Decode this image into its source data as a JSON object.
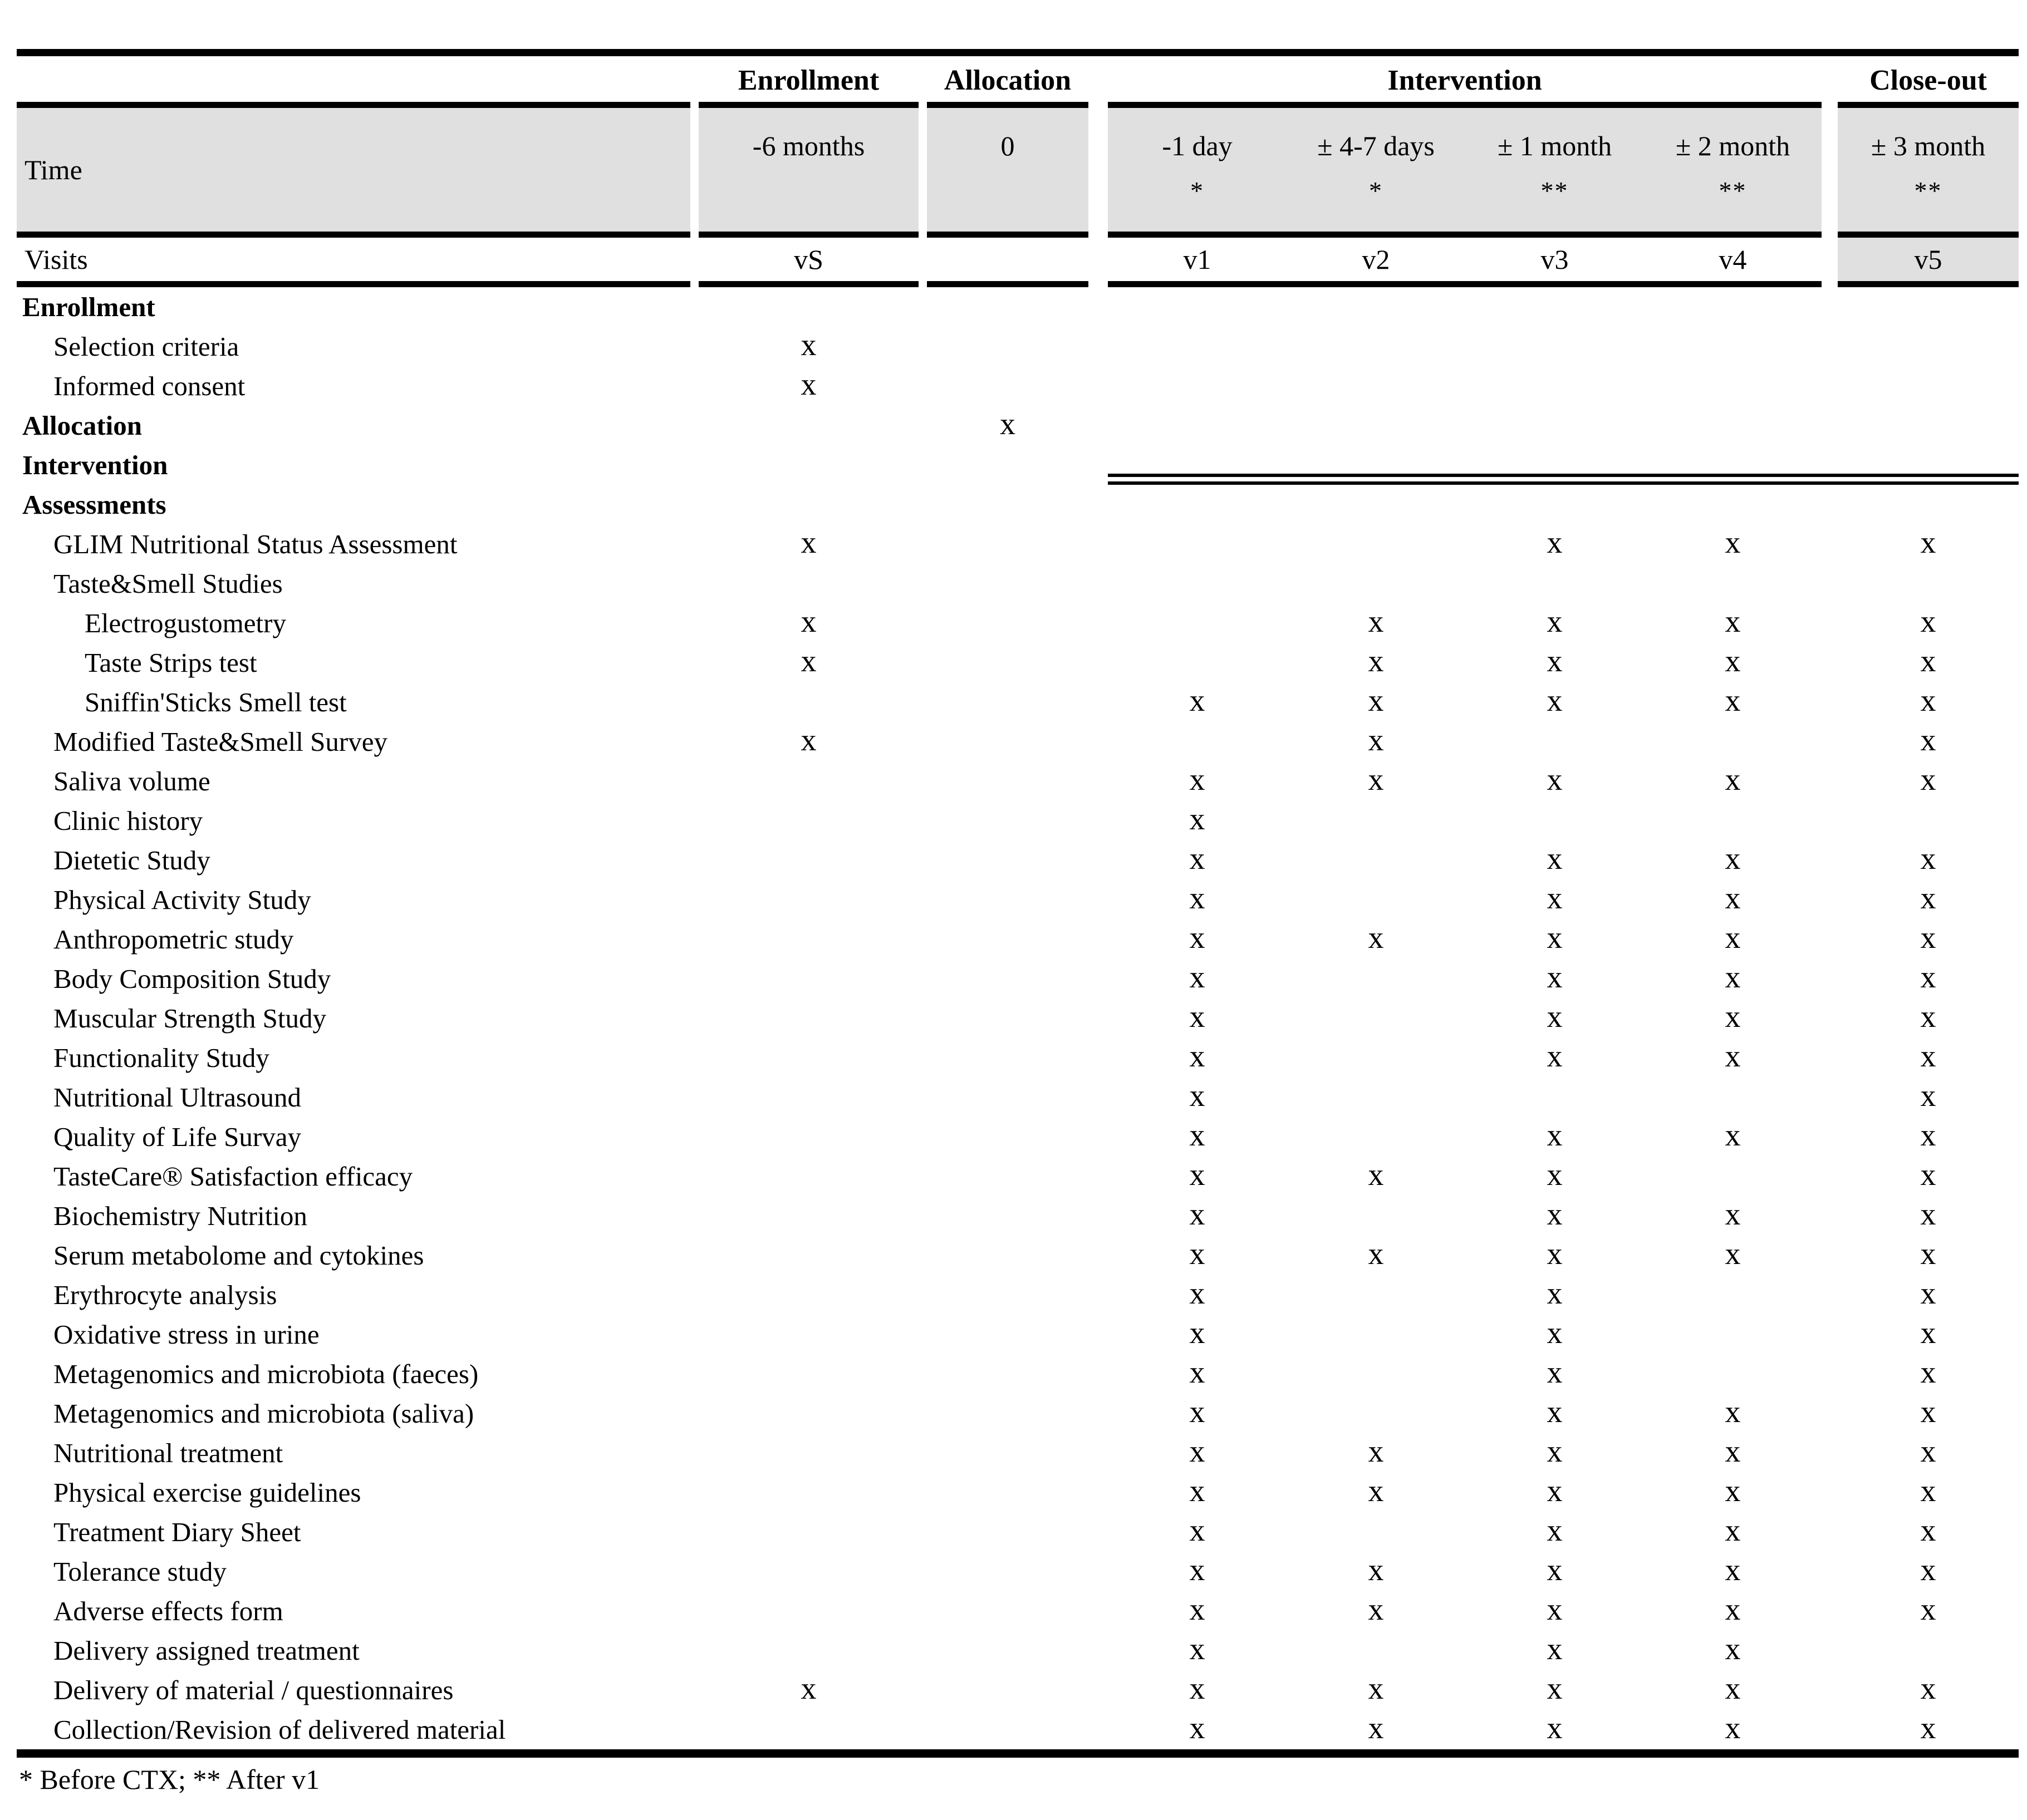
{
  "page": {
    "shaded_cell_color": "#e0e0e0",
    "footnote": "* Before CTX; ** After v1"
  },
  "header": {
    "time_label": "Time",
    "visits_label": "Visits",
    "groups": [
      {
        "label": "Enrollment",
        "time": "-6 months",
        "note": "",
        "visit": "vS"
      },
      {
        "label": "Allocation",
        "time": "0",
        "note": "",
        "visit": ""
      },
      {
        "label": "Intervention",
        "columns": [
          {
            "time": "-1 day",
            "note": "*",
            "visit": "v1"
          },
          {
            "time": "± 4-7 days",
            "note": "*",
            "visit": "v2"
          },
          {
            "time": "± 1 month",
            "note": "**",
            "visit": "v3"
          },
          {
            "time": "± 2 month",
            "note": "**",
            "visit": "v4"
          }
        ]
      },
      {
        "label": "Close-out",
        "time": "± 3 month",
        "note": "**",
        "visit": "v5"
      }
    ]
  },
  "mark_symbol": "x",
  "rows": [
    {
      "label": "Enrollment",
      "level": 0,
      "bold": true,
      "divider": false,
      "marks": [
        "",
        "",
        "",
        "",
        "",
        "",
        ""
      ]
    },
    {
      "label": "Selection criteria",
      "level": 1,
      "bold": false,
      "divider": false,
      "marks": [
        "x",
        "",
        "",
        "",
        "",
        "",
        ""
      ]
    },
    {
      "label": "Informed consent",
      "level": 1,
      "bold": false,
      "divider": false,
      "marks": [
        "x",
        "",
        "",
        "",
        "",
        "",
        ""
      ]
    },
    {
      "label": "Allocation",
      "level": 0,
      "bold": true,
      "divider": false,
      "marks": [
        "",
        "x",
        "",
        "",
        "",
        "",
        ""
      ]
    },
    {
      "label": "Intervention",
      "level": 0,
      "bold": true,
      "divider": true,
      "marks": [
        "",
        "",
        "",
        "",
        "",
        "",
        ""
      ]
    },
    {
      "label": "Assessments",
      "level": 0,
      "bold": true,
      "divider": false,
      "marks": [
        "",
        "",
        "",
        "",
        "",
        "",
        ""
      ]
    },
    {
      "label": "GLIM Nutritional Status Assessment",
      "level": 1,
      "bold": false,
      "divider": false,
      "marks": [
        "x",
        "",
        "",
        "",
        "x",
        "x",
        "x"
      ]
    },
    {
      "label": "Taste&Smell Studies",
      "level": 1,
      "bold": false,
      "divider": false,
      "marks": [
        "",
        "",
        "",
        "",
        "",
        "",
        ""
      ]
    },
    {
      "label": "Electrogustometry",
      "level": 2,
      "bold": false,
      "divider": false,
      "marks": [
        "x",
        "",
        "",
        "x",
        "x",
        "x",
        "x"
      ]
    },
    {
      "label": "Taste Strips test",
      "level": 2,
      "bold": false,
      "divider": false,
      "marks": [
        "x",
        "",
        "",
        "x",
        "x",
        "x",
        "x"
      ]
    },
    {
      "label": "Sniffin'Sticks Smell test",
      "level": 2,
      "bold": false,
      "divider": false,
      "marks": [
        "",
        "",
        "x",
        "x",
        "x",
        "x",
        "x"
      ]
    },
    {
      "label": "Modified Taste&Smell Survey",
      "level": 1,
      "bold": false,
      "divider": false,
      "marks": [
        "x",
        "",
        "",
        "x",
        "",
        "",
        "x"
      ]
    },
    {
      "label": "Saliva volume",
      "level": 1,
      "bold": false,
      "divider": false,
      "marks": [
        "",
        "",
        "x",
        "x",
        "x",
        "x",
        "x"
      ]
    },
    {
      "label": "Clinic history",
      "level": 1,
      "bold": false,
      "divider": false,
      "marks": [
        "",
        "",
        "x",
        "",
        "",
        "",
        ""
      ]
    },
    {
      "label": "Dietetic Study",
      "level": 1,
      "bold": false,
      "divider": false,
      "marks": [
        "",
        "",
        "x",
        "",
        "x",
        "x",
        "x"
      ]
    },
    {
      "label": "Physical Activity Study",
      "level": 1,
      "bold": false,
      "divider": false,
      "marks": [
        "",
        "",
        "x",
        "",
        "x",
        "x",
        "x"
      ]
    },
    {
      "label": "Anthropometric study",
      "level": 1,
      "bold": false,
      "divider": false,
      "marks": [
        "",
        "",
        "x",
        "x",
        "x",
        "x",
        "x"
      ]
    },
    {
      "label": "Body Composition Study",
      "level": 1,
      "bold": false,
      "divider": false,
      "marks": [
        "",
        "",
        "x",
        "",
        "x",
        "x",
        "x"
      ]
    },
    {
      "label": "Muscular Strength Study",
      "level": 1,
      "bold": false,
      "divider": false,
      "marks": [
        "",
        "",
        "x",
        "",
        "x",
        "x",
        "x"
      ]
    },
    {
      "label": "Functionality Study",
      "level": 1,
      "bold": false,
      "divider": false,
      "marks": [
        "",
        "",
        "x",
        "",
        "x",
        "x",
        "x"
      ]
    },
    {
      "label": "Nutritional Ultrasound",
      "level": 1,
      "bold": false,
      "divider": false,
      "marks": [
        "",
        "",
        "x",
        "",
        "",
        "",
        "x"
      ]
    },
    {
      "label": "Quality of Life Survay",
      "level": 1,
      "bold": false,
      "divider": false,
      "marks": [
        "",
        "",
        "x",
        "",
        "x",
        "x",
        "x"
      ]
    },
    {
      "label": "TasteCare® Satisfaction efficacy",
      "level": 1,
      "bold": false,
      "divider": false,
      "marks": [
        "",
        "",
        "x",
        "x",
        "x",
        "",
        "x"
      ]
    },
    {
      "label": "Biochemistry Nutrition",
      "level": 1,
      "bold": false,
      "divider": false,
      "marks": [
        "",
        "",
        "x",
        "",
        "x",
        "x",
        "x"
      ]
    },
    {
      "label": "Serum metabolome and cytokines",
      "level": 1,
      "bold": false,
      "divider": false,
      "marks": [
        "",
        "",
        "x",
        "x",
        "x",
        "x",
        "x"
      ]
    },
    {
      "label": "Erythrocyte analysis",
      "level": 1,
      "bold": false,
      "divider": false,
      "marks": [
        "",
        "",
        "x",
        "",
        "x",
        "",
        "x"
      ]
    },
    {
      "label": "Oxidative stress in urine",
      "level": 1,
      "bold": false,
      "divider": false,
      "marks": [
        "",
        "",
        "x",
        "",
        "x",
        "",
        "x"
      ]
    },
    {
      "label": "Metagenomics and microbiota (faeces)",
      "level": 1,
      "bold": false,
      "divider": false,
      "marks": [
        "",
        "",
        "x",
        "",
        "x",
        "",
        "x"
      ]
    },
    {
      "label": "Metagenomics and microbiota (saliva)",
      "level": 1,
      "bold": false,
      "divider": false,
      "marks": [
        "",
        "",
        "x",
        "",
        "x",
        "x",
        "x"
      ]
    },
    {
      "label": "Nutritional treatment",
      "level": 1,
      "bold": false,
      "divider": false,
      "marks": [
        "",
        "",
        "x",
        "x",
        "x",
        "x",
        "x"
      ]
    },
    {
      "label": "Physical exercise guidelines",
      "level": 1,
      "bold": false,
      "divider": false,
      "marks": [
        "",
        "",
        "x",
        "x",
        "x",
        "x",
        "x"
      ]
    },
    {
      "label": "Treatment Diary Sheet",
      "level": 1,
      "bold": false,
      "divider": false,
      "marks": [
        "",
        "",
        "x",
        "",
        "x",
        "x",
        "x"
      ]
    },
    {
      "label": "Tolerance study",
      "level": 1,
      "bold": false,
      "divider": false,
      "marks": [
        "",
        "",
        "x",
        "x",
        "x",
        "x",
        "x"
      ]
    },
    {
      "label": "Adverse effects form",
      "level": 1,
      "bold": false,
      "divider": false,
      "marks": [
        "",
        "",
        "x",
        "x",
        "x",
        "x",
        "x"
      ]
    },
    {
      "label": "Delivery assigned treatment",
      "level": 1,
      "bold": false,
      "divider": false,
      "marks": [
        "",
        "",
        "x",
        "",
        "x",
        "x",
        ""
      ]
    },
    {
      "label": "Delivery of material / questionnaires",
      "level": 1,
      "bold": false,
      "divider": false,
      "marks": [
        "x",
        "",
        "x",
        "x",
        "x",
        "x",
        "x"
      ]
    },
    {
      "label": "Collection/Revision of delivered material",
      "level": 1,
      "bold": false,
      "divider": false,
      "marks": [
        "",
        "",
        "x",
        "x",
        "x",
        "x",
        "x"
      ]
    }
  ]
}
